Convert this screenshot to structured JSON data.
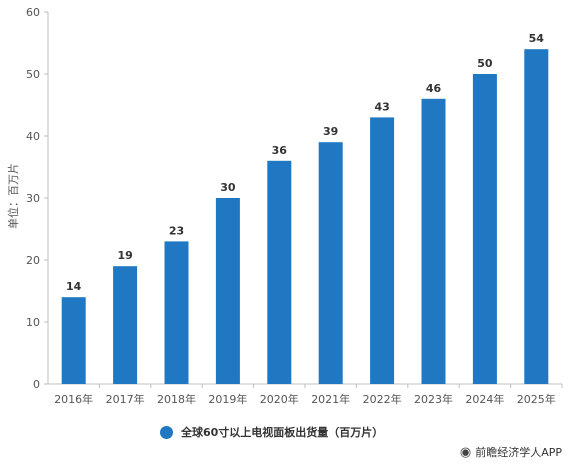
{
  "chart_data": {
    "type": "bar",
    "categories": [
      "2016年",
      "2017年",
      "2018年",
      "2019年",
      "2020年",
      "2021年",
      "2022年",
      "2023年",
      "2024年",
      "2025年"
    ],
    "series": [
      {
        "name": "全球60寸以上电视面板出货量（百万片）",
        "values": [
          14,
          19,
          23,
          30,
          36,
          39,
          43,
          46,
          50,
          54
        ]
      }
    ],
    "ylabel": "单位：百万片",
    "ylim": [
      0,
      60
    ],
    "yticks": [
      0,
      10,
      20,
      30,
      40,
      50,
      60
    ],
    "grid": false,
    "bar_color": "#1f78c1",
    "legend_position": "bottom"
  },
  "source": {
    "icon": "wechat-icon",
    "text": "前瞻经济学人APP"
  }
}
